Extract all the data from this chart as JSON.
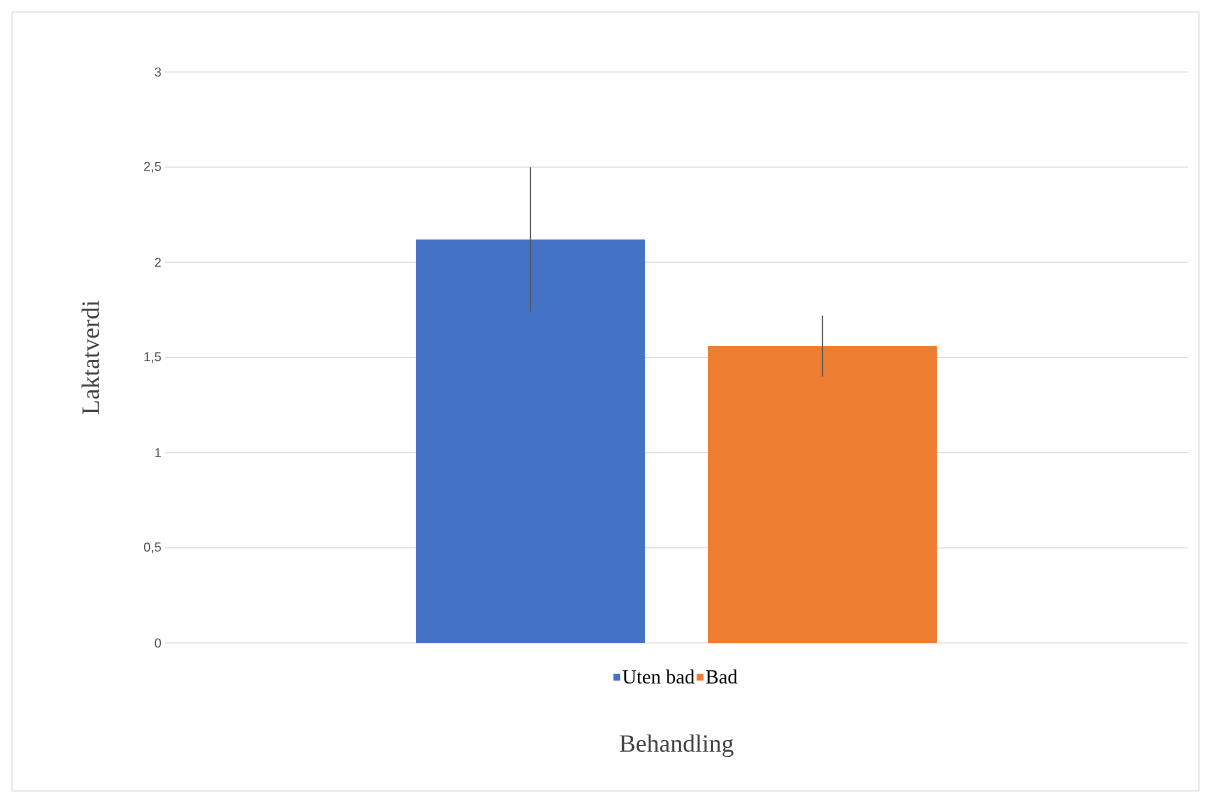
{
  "chart_data": {
    "type": "bar",
    "xlabel": "Behandling",
    "ylabel": "Laktatverdi",
    "categories": [
      null
    ],
    "series": [
      {
        "name": "Uten bad",
        "color": "#4472c4",
        "values": [
          2.12
        ],
        "errors": [
          0.38
        ]
      },
      {
        "name": "Bad",
        "color": "#ed7d31",
        "values": [
          1.56
        ],
        "errors": [
          0.16
        ]
      }
    ],
    "ylim": [
      0,
      3
    ],
    "yticks": [
      0,
      {
        "value": 0.5,
        "label": "0,5"
      },
      1,
      {
        "value": 1.5,
        "label": "1,5"
      },
      2,
      {
        "value": 2.5,
        "label": "2,5"
      },
      3
    ],
    "grid": "y",
    "legend": "bottom"
  }
}
